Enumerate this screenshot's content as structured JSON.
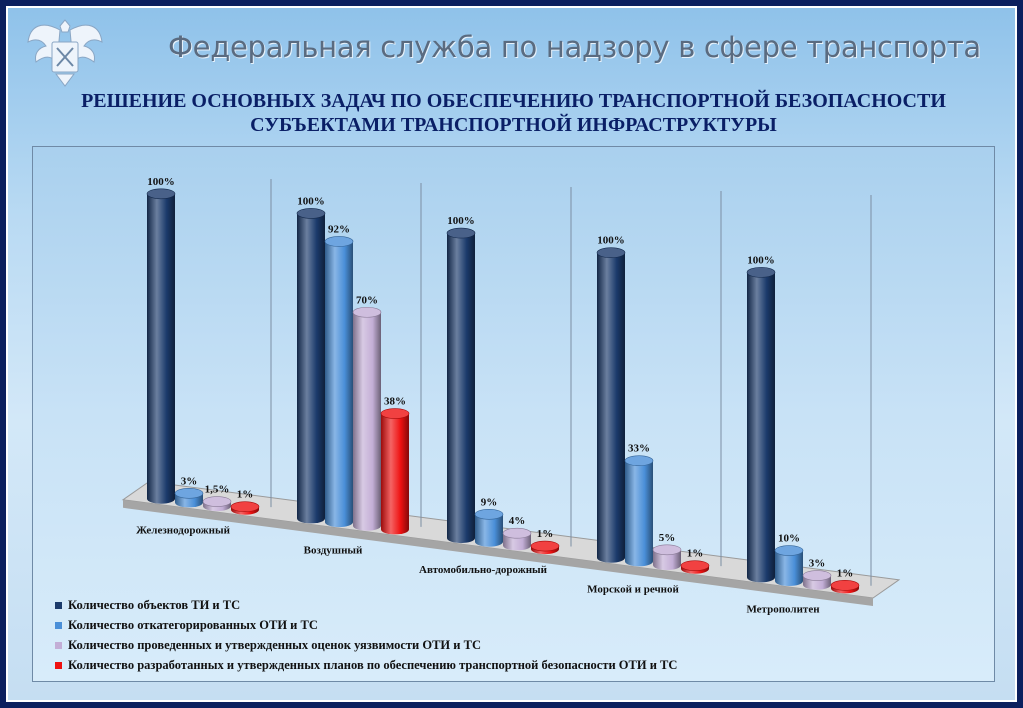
{
  "header": {
    "agency": "Федеральная служба по надзору в сфере транспорта",
    "title_line1": "РЕШЕНИЕ ОСНОВНЫХ ЗАДАЧ ПО ОБЕСПЕЧЕНИЮ ТРАНСПОРТНОЙ БЕЗОПАСНОСТИ",
    "title_line2": "СУБЪЕКТАМИ ТРАНСПОРТНОЙ ИНФРАСТРУКТУРЫ"
  },
  "colors": {
    "navy": "#1b3a6b",
    "blue": "#4a8fd8",
    "lavender": "#c3aed6",
    "red": "#ee1111"
  },
  "chart_data": {
    "type": "bar",
    "style": "3d-cylinder",
    "categories": [
      "Железнодорожный",
      "Воздушный",
      "Автомобильно-дорожный",
      "Морской и речной",
      "Метрополитен"
    ],
    "series": [
      {
        "name": "Количество  объектов  ТИ и ТС",
        "values": [
          100,
          100,
          100,
          100,
          100
        ],
        "labels": [
          "100%",
          "100%",
          "100%",
          "100%",
          "100%"
        ],
        "color": "#1b3a6b"
      },
      {
        "name": "Количество  откатегорированных  ОТИ и ТС",
        "values": [
          3,
          92,
          9,
          33,
          10
        ],
        "labels": [
          "3%",
          "92%",
          "9%",
          "33%",
          "10%"
        ],
        "color": "#4a8fd8"
      },
      {
        "name": "Количество  проведенных  и утвержденных  оценок  уязвимости  ОТИ и ТС",
        "values": [
          1.5,
          70,
          4,
          5,
          3
        ],
        "labels": [
          "1,5%",
          "70%",
          "4%",
          "5%",
          "3%"
        ],
        "color": "#c3aed6"
      },
      {
        "name": "Количество  разработанных  и утвержденных  планов  по обеспечению  транспортной  безопасности  ОТИ и ТС",
        "values": [
          1,
          38,
          1,
          1,
          1
        ],
        "labels": [
          "1%",
          "38%",
          "1%",
          "1%",
          "1%"
        ],
        "color": "#ee1111"
      }
    ],
    "ylim": [
      0,
      100
    ],
    "grid": false,
    "legend_position": "bottom-left",
    "xlabel": "",
    "ylabel": ""
  }
}
